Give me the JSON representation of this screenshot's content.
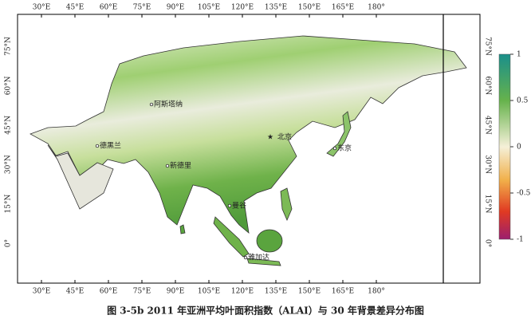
{
  "map": {
    "lon_labels": [
      "30°E",
      "45°E",
      "60°E",
      "75°E",
      "90°E",
      "105°E",
      "120°E",
      "135°E",
      "150°E",
      "165°E",
      "180°"
    ],
    "lat_labels": [
      "75°N",
      "60°N",
      "45°N",
      "30°N",
      "15°N",
      "0°"
    ],
    "cities": [
      "阿斯塔纳",
      "北京",
      "东京",
      "德黑兰",
      "新德里",
      "曼谷",
      "雅加达"
    ],
    "colorbar": {
      "ticks": [
        1,
        0.5,
        0,
        -0.5,
        -1
      ]
    }
  },
  "caption": "图 3-5b 2011 年亚洲平均叶面积指数（ALAI）与 30 年背景差异分布图"
}
